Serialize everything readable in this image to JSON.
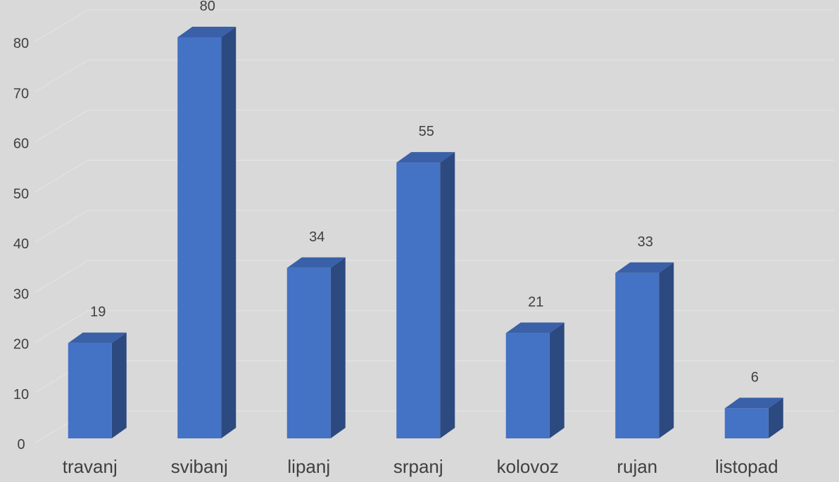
{
  "chart_data": {
    "type": "bar",
    "style": "3d-column",
    "categories": [
      "travanj",
      "svibanj",
      "lipanj",
      "srpanj",
      "kolovoz",
      "rujan",
      "listopad"
    ],
    "values": [
      19,
      80,
      34,
      55,
      21,
      33,
      6
    ],
    "ylim": [
      0,
      80
    ],
    "yticks": [
      0,
      10,
      20,
      30,
      40,
      50,
      60,
      70,
      80
    ],
    "grid": true,
    "legend": "none",
    "data_labels": true,
    "colors": {
      "background": "#d9d9d9",
      "bar_front": "#4472c4",
      "bar_side": "#2c4a80",
      "bar_top": "#3a60a8",
      "text": "#404040",
      "grid": "#e3e3e3"
    }
  }
}
